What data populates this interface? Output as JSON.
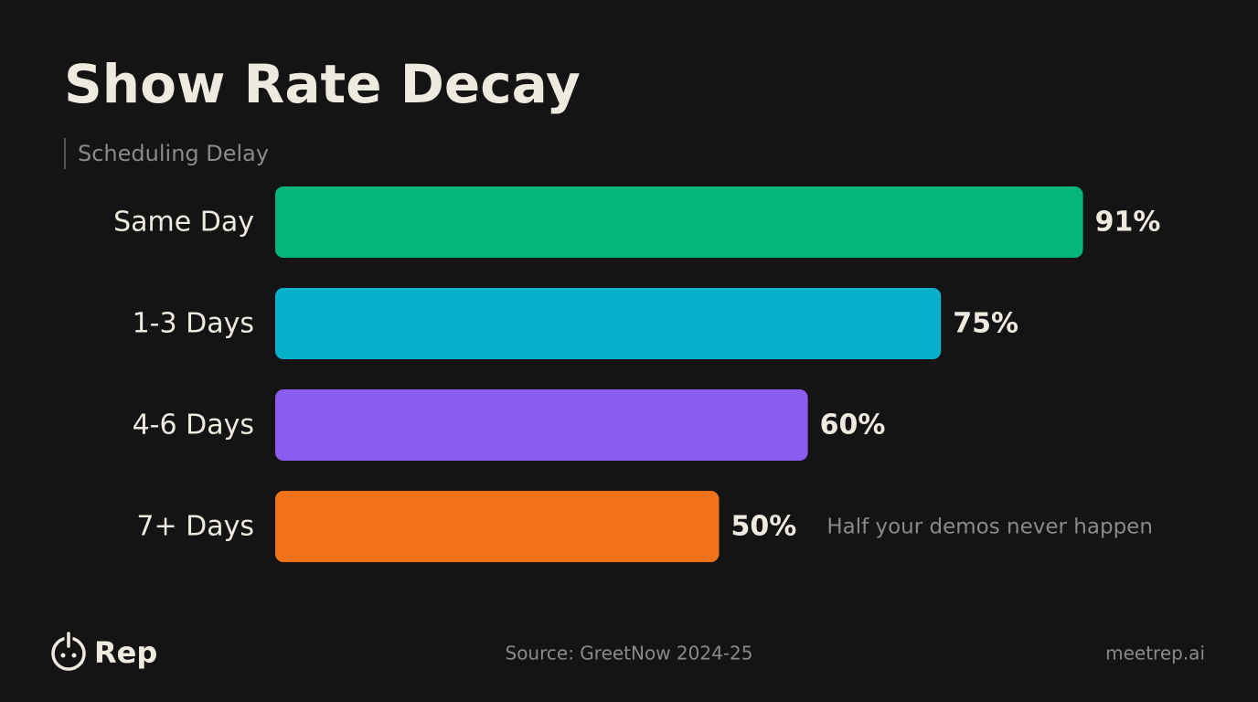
{
  "chart_data": {
    "type": "bar",
    "orientation": "horizontal",
    "title": "Show Rate Decay",
    "y_label": "Scheduling Delay",
    "categories": [
      "Same Day",
      "1-3 Days",
      "4-6 Days",
      "7+ Days"
    ],
    "values": [
      91,
      75,
      60,
      50
    ],
    "value_labels": [
      "91%",
      "75%",
      "60%",
      "50%"
    ],
    "colors": [
      "#06b57a",
      "#06b0cc",
      "#8a5cf0",
      "#f2721c"
    ],
    "xlim": [
      0,
      100
    ],
    "annotation": "Half your demos never happen"
  },
  "footer": {
    "brand": "Rep",
    "source": "Source: GreetNow 2024-25",
    "website": "meetrep.ai"
  }
}
